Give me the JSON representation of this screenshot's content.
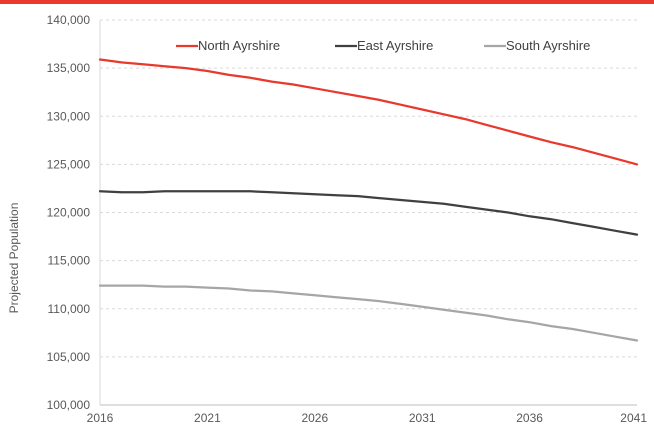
{
  "chart_data": {
    "type": "line",
    "title": "",
    "xlabel": "",
    "ylabel": "Projected Population",
    "x": [
      2016,
      2017,
      2018,
      2019,
      2020,
      2021,
      2022,
      2023,
      2024,
      2025,
      2026,
      2027,
      2028,
      2029,
      2030,
      2031,
      2032,
      2033,
      2034,
      2035,
      2036,
      2037,
      2038,
      2039,
      2040,
      2041
    ],
    "xticks": [
      "2016",
      "2021",
      "2026",
      "2031",
      "2036",
      "2041"
    ],
    "xtick_values": [
      2016,
      2021,
      2026,
      2031,
      2036,
      2041
    ],
    "xlim": [
      2016,
      2041
    ],
    "ylim": [
      100000,
      140000
    ],
    "yticks": [
      "100,000",
      "105,000",
      "110,000",
      "115,000",
      "120,000",
      "125,000",
      "130,000",
      "135,000",
      "140,000"
    ],
    "ytick_values": [
      100000,
      105000,
      110000,
      115000,
      120000,
      125000,
      130000,
      135000,
      140000
    ],
    "grid": "horizontal dashed",
    "legend_position": "top",
    "series": [
      {
        "name": "North Ayrshire",
        "color": "#e8392c",
        "values": [
          135900,
          135600,
          135400,
          135200,
          135000,
          134700,
          134300,
          134000,
          133600,
          133300,
          132900,
          132500,
          132100,
          131700,
          131200,
          130700,
          130200,
          129700,
          129100,
          128500,
          127900,
          127300,
          126800,
          126200,
          125600,
          125000
        ]
      },
      {
        "name": "East Ayrshire",
        "color": "#404040",
        "values": [
          122200,
          122100,
          122100,
          122200,
          122200,
          122200,
          122200,
          122200,
          122100,
          122000,
          121900,
          121800,
          121700,
          121500,
          121300,
          121100,
          120900,
          120600,
          120300,
          120000,
          119600,
          119300,
          118900,
          118500,
          118100,
          117700
        ]
      },
      {
        "name": "South Ayrshire",
        "color": "#a6a6a6",
        "values": [
          112400,
          112400,
          112400,
          112300,
          112300,
          112200,
          112100,
          111900,
          111800,
          111600,
          111400,
          111200,
          111000,
          110800,
          110500,
          110200,
          109900,
          109600,
          109300,
          108900,
          108600,
          108200,
          107900,
          107500,
          107100,
          106700
        ]
      }
    ]
  }
}
